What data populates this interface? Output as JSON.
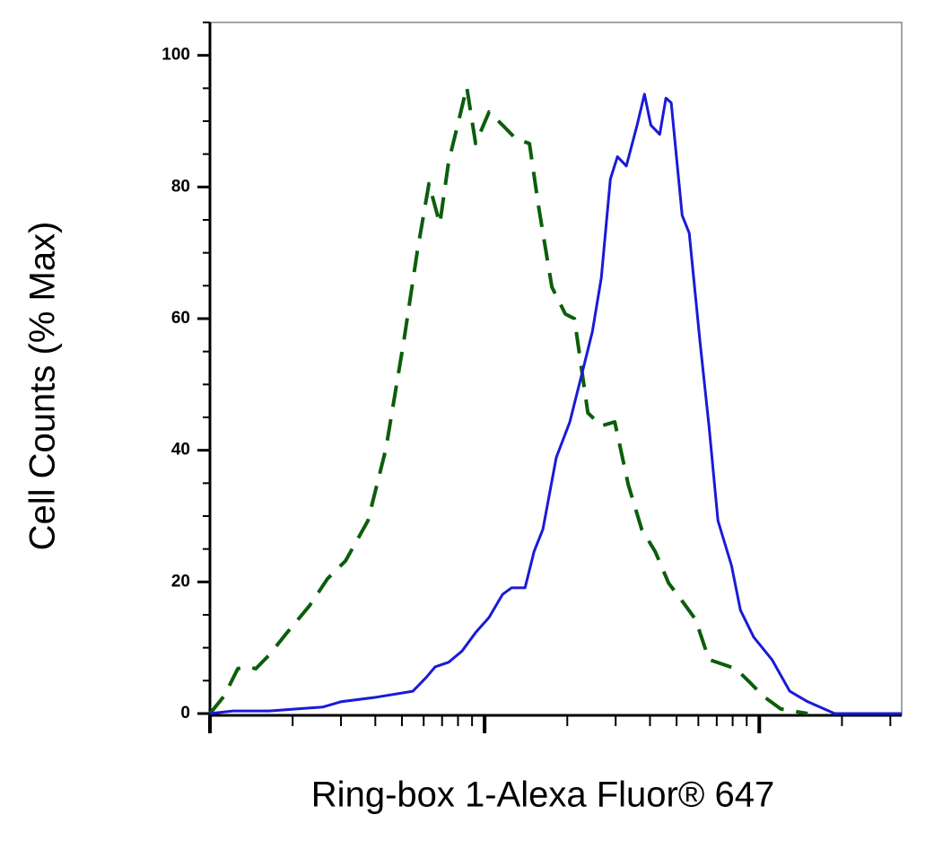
{
  "chart_data": {
    "type": "line",
    "xlabel": "Ring-box 1-Alexa Fluor® 647",
    "ylabel": "Cell Counts (% Max)",
    "xscale": "log",
    "xlim": [
      1,
      330
    ],
    "xticks": [
      1,
      10,
      100
    ],
    "ylim": [
      0,
      105
    ],
    "yticks": [
      0,
      20,
      40,
      60,
      80,
      100
    ],
    "yminorstep": 5,
    "series": [
      {
        "color": "#0b5e0b",
        "dash": true,
        "x": [
          1,
          1.128,
          1.263,
          1.361,
          1.468,
          1.644,
          1.91,
          2.306,
          2.68,
          3.116,
          3.76,
          4.37,
          5.08,
          5.69,
          6.27,
          6.87,
          7.4,
          7.98,
          8.61,
          9.27,
          10.38,
          11.62,
          13.01,
          14.56,
          15.71,
          17.58,
          19.68,
          21.23,
          23.77,
          26.6,
          29.78,
          33.34,
          37.3,
          41.8,
          46.8,
          52.4,
          58.6,
          65.6,
          73.5,
          82.2,
          92.1,
          103,
          119.7,
          150
        ],
        "values": [
          0,
          2.7,
          6.8,
          7.2,
          6.8,
          8.9,
          12.3,
          16.4,
          20.5,
          23.2,
          29.3,
          40.2,
          56.6,
          70.3,
          80.5,
          74.4,
          83.9,
          89.4,
          95.2,
          86.6,
          91.4,
          89.4,
          87.3,
          86.6,
          77.1,
          64.8,
          60.7,
          60,
          45.7,
          43.7,
          44.3,
          34.8,
          28,
          24.6,
          19.8,
          17.1,
          14.3,
          8.2,
          7.5,
          6.8,
          4.8,
          2.7,
          0.7,
          0
        ]
      },
      {
        "color": "#1a1ad8",
        "dash": false,
        "x": [
          1,
          1.216,
          1.644,
          2.06,
          2.58,
          3,
          4.05,
          5.48,
          6.13,
          6.61,
          7.4,
          8.28,
          9.27,
          10.38,
          11.62,
          12.53,
          14.03,
          15.13,
          16.3,
          18.24,
          20.43,
          22.88,
          24.68,
          26.6,
          28.7,
          30.46,
          32.8,
          35.9,
          38.2,
          40.3,
          43.4,
          45.7,
          47.8,
          52.4,
          55.6,
          60.8,
          65.6,
          70.7,
          79.2,
          85.4,
          95.5,
          111.2,
          129.1,
          150,
          188.2,
          330
        ],
        "values": [
          0,
          0.4,
          0.4,
          0.7,
          1,
          1.8,
          2.5,
          3.4,
          5.5,
          7.1,
          7.8,
          9.5,
          12.3,
          14.6,
          18.1,
          19.1,
          19.1,
          24.6,
          28,
          38.9,
          44.3,
          52.5,
          58,
          66.2,
          81.2,
          84.6,
          83.2,
          89.4,
          94.1,
          89.4,
          88,
          93.5,
          92.8,
          75.7,
          73,
          56.6,
          43.7,
          29.3,
          22.5,
          15.7,
          11.6,
          8.2,
          3.4,
          1.8,
          0,
          0
        ]
      }
    ]
  }
}
